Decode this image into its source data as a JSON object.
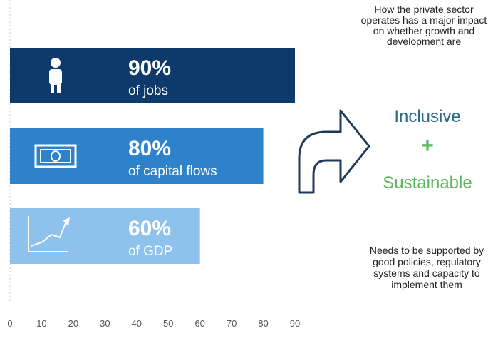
{
  "chart_data": {
    "type": "bar",
    "orientation": "horizontal",
    "categories": [
      "of jobs",
      "of capital flows",
      "of GDP"
    ],
    "values": [
      90,
      80,
      60
    ],
    "data_labels": [
      "90%",
      "80%",
      "60%"
    ],
    "icons": [
      "person-icon",
      "banknote-icon",
      "growth-chart-icon"
    ],
    "xlim": [
      0,
      90
    ],
    "xticks": [
      "0",
      "10",
      "20",
      "30",
      "40",
      "50",
      "60",
      "70",
      "80",
      "90"
    ],
    "grid": false,
    "colors": [
      "#0e3a6b",
      "#2e82c9",
      "#8ec1ec"
    ]
  },
  "side_panel": {
    "top_text": "How the private sector operates has a major impact on whether growth and development are",
    "word1": "Inclusive",
    "plus": "+",
    "word2": "Sustainable",
    "bottom_text": "Needs to be supported by good policies, regulatory systems and capacity to implement them",
    "colors": {
      "word1": "#2b6a8a",
      "plus": "#5cb85c",
      "word2": "#5cb85c",
      "arrow": "#1f3a5a"
    },
    "icon": "curved-arrow-icon"
  }
}
